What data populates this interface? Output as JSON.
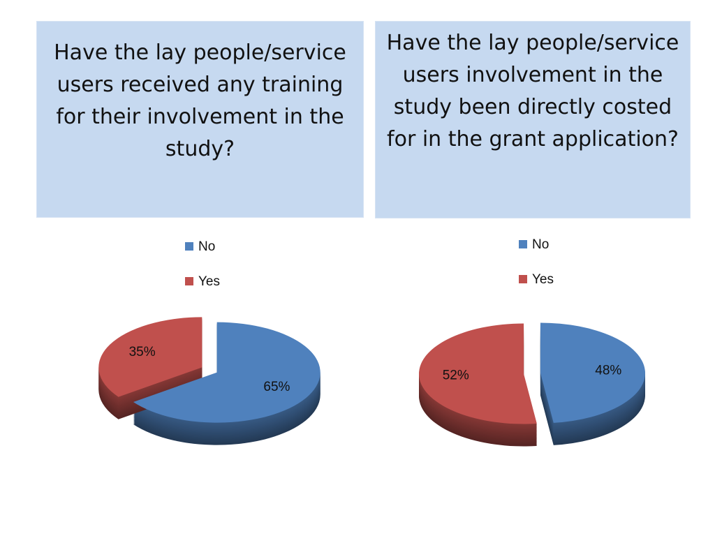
{
  "chart_data": [
    {
      "type": "pie",
      "title": "Have the lay people/service users received any training for their involvement in the study?",
      "categories": [
        "No",
        "Yes"
      ],
      "values": [
        65,
        35
      ],
      "value_labels": [
        "65%",
        "35%"
      ],
      "colors": [
        "#4f81bd",
        "#c0504d"
      ]
    },
    {
      "type": "pie",
      "title": "Have the lay people/service users involvement in the study been directly costed for in the grant application?",
      "categories": [
        "No",
        "Yes"
      ],
      "values": [
        48,
        52
      ],
      "value_labels": [
        "48%",
        "52%"
      ],
      "colors": [
        "#4f81bd",
        "#c0504d"
      ]
    }
  ]
}
